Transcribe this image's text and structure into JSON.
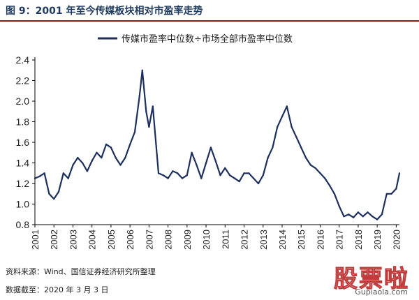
{
  "header": {
    "title": "图 9：2001 年至今传媒板块相对市盈率走势"
  },
  "footer": {
    "source": "资料来源：Wind、国信证券经济研究所整理",
    "date": "数据截至：2020 年 3 月 3 日"
  },
  "watermark": {
    "text": "股票啦",
    "url": "Gupiaola.com"
  },
  "chart_data": {
    "type": "line",
    "title": "",
    "xlabel": "",
    "ylabel": "",
    "ylim": [
      0.8,
      2.4
    ],
    "yticks": [
      "0.8",
      "1.0",
      "1.2",
      "1.4",
      "1.6",
      "1.8",
      "2.0",
      "2.2",
      "2.4"
    ],
    "xticks": [
      "2001",
      "2002",
      "2003",
      "2004",
      "2005",
      "2006",
      "2007",
      "2008",
      "2009",
      "2010",
      "2011",
      "2012",
      "2013",
      "2014",
      "2015",
      "2016",
      "2017",
      "2018",
      "2019",
      "2020"
    ],
    "grid": false,
    "legend_position": "top-right",
    "line_color": "#1c2f5e",
    "series": [
      {
        "name": "传媒市盈率中位数÷市场全部市盈率中位数",
        "x": [
          2001.0,
          2001.25,
          2001.5,
          2001.75,
          2002.0,
          2002.25,
          2002.5,
          2002.75,
          2003.0,
          2003.25,
          2003.5,
          2003.75,
          2004.0,
          2004.25,
          2004.5,
          2004.75,
          2005.0,
          2005.25,
          2005.5,
          2005.75,
          2006.0,
          2006.25,
          2006.5,
          2006.65,
          2006.85,
          2007.0,
          2007.2,
          2007.5,
          2007.75,
          2008.0,
          2008.25,
          2008.5,
          2008.75,
          2009.0,
          2009.25,
          2009.5,
          2009.75,
          2010.0,
          2010.25,
          2010.5,
          2010.75,
          2011.0,
          2011.25,
          2011.5,
          2011.75,
          2012.0,
          2012.25,
          2012.5,
          2012.75,
          2013.0,
          2013.25,
          2013.5,
          2013.75,
          2014.0,
          2014.25,
          2014.5,
          2014.75,
          2015.0,
          2015.25,
          2015.5,
          2015.75,
          2016.0,
          2016.25,
          2016.5,
          2016.75,
          2017.0,
          2017.25,
          2017.5,
          2017.75,
          2018.0,
          2018.25,
          2018.5,
          2018.75,
          2019.0,
          2019.25,
          2019.5,
          2019.75,
          2020.0,
          2020.17
        ],
        "values": [
          1.25,
          1.27,
          1.3,
          1.1,
          1.05,
          1.12,
          1.3,
          1.25,
          1.38,
          1.45,
          1.4,
          1.32,
          1.42,
          1.5,
          1.45,
          1.58,
          1.55,
          1.45,
          1.38,
          1.45,
          1.58,
          1.7,
          2.05,
          2.3,
          1.9,
          1.75,
          1.95,
          1.3,
          1.28,
          1.25,
          1.32,
          1.3,
          1.25,
          1.28,
          1.5,
          1.38,
          1.25,
          1.4,
          1.55,
          1.42,
          1.28,
          1.35,
          1.28,
          1.25,
          1.22,
          1.3,
          1.3,
          1.25,
          1.2,
          1.28,
          1.45,
          1.55,
          1.75,
          1.85,
          1.95,
          1.75,
          1.65,
          1.55,
          1.45,
          1.38,
          1.35,
          1.3,
          1.25,
          1.18,
          1.1,
          0.98,
          0.88,
          0.9,
          0.87,
          0.92,
          0.88,
          0.92,
          0.88,
          0.85,
          0.9,
          1.1,
          1.1,
          1.15,
          1.3
        ]
      }
    ]
  }
}
